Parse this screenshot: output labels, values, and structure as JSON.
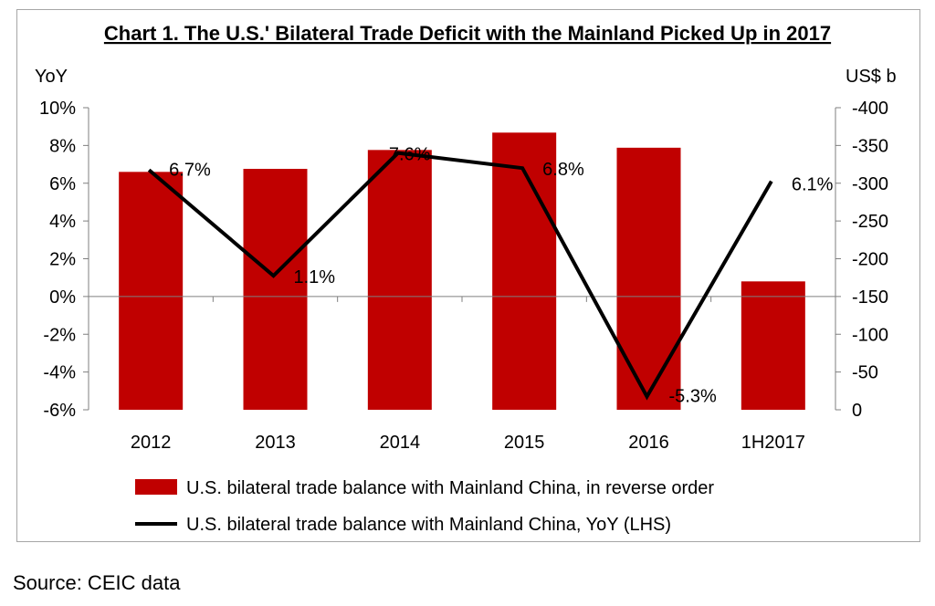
{
  "chart_data": {
    "type": "bar",
    "title": "Chart 1. The U.S.' Bilateral Trade Deficit with the Mainland Picked Up in 2017",
    "left_axis_unit": "YoY",
    "right_axis_unit": "US$ b",
    "categories": [
      "2012",
      "2013",
      "2014",
      "2015",
      "2016",
      "1H2017"
    ],
    "left_ticks": [
      "10%",
      "8%",
      "6%",
      "4%",
      "2%",
      "0%",
      "-2%",
      "-4%",
      "-6%"
    ],
    "right_ticks": [
      "-400",
      "-350",
      "-300",
      "-250",
      "-200",
      "-150",
      "-100",
      "-50",
      "0"
    ],
    "left_ylim": [
      -6,
      10
    ],
    "right_ylim": [
      0,
      -400
    ],
    "series": [
      {
        "name": "U.S. bilateral trade balance with Mainland China, in reverse order",
        "type": "bar",
        "axis": "right",
        "color": "#c00000",
        "values": [
          -315,
          -319,
          -344,
          -367,
          -347,
          -170
        ]
      },
      {
        "name": "U.S. bilateral trade balance with Mainland China, YoY (LHS)",
        "type": "line",
        "axis": "left",
        "color": "#000000",
        "values": [
          6.7,
          1.1,
          7.6,
          6.8,
          -5.3,
          6.1
        ],
        "labels": [
          "6.7%",
          "1.1%",
          "7.6%",
          "6.8%",
          "-5.3%",
          "6.1%"
        ]
      }
    ],
    "grid": false,
    "legend_position": "bottom"
  },
  "source": "Source: CEIC data"
}
